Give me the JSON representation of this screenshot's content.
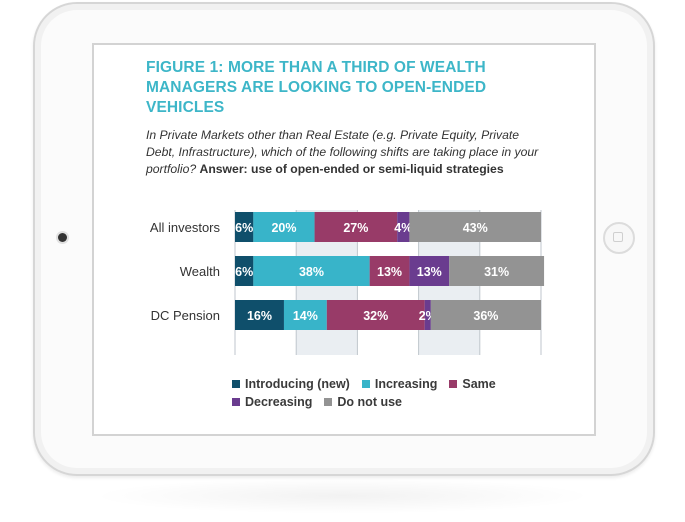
{
  "figure": {
    "title": "FIGURE 1: MORE THAN A THIRD OF WEALTH MANAGERS ARE LOOKING TO OPEN-ENDED VEHICLES",
    "question": "In Private Markets other than Real Estate (e.g. Private Equity, Private Debt, Infrastructure), which of the following shifts are taking place in your portfolio?",
    "answer": "Answer: use of open-ended or semi-liquid strategies"
  },
  "chart_data": {
    "type": "bar",
    "orientation": "horizontal",
    "stacked": true,
    "categories": [
      "All investors",
      "Wealth",
      "DC Pension"
    ],
    "series": [
      {
        "name": "Introducing (new)",
        "color": "#0f4f6b",
        "values": [
          6,
          6,
          16
        ]
      },
      {
        "name": "Increasing",
        "color": "#38b4c9",
        "values": [
          20,
          38,
          14
        ]
      },
      {
        "name": "Same",
        "color": "#983b68",
        "values": [
          27,
          13,
          32
        ]
      },
      {
        "name": "Decreasing",
        "color": "#6a3c8f",
        "values": [
          4,
          13,
          2
        ]
      },
      {
        "name": "Do not use",
        "color": "#939393",
        "values": [
          43,
          31,
          36
        ]
      }
    ],
    "value_suffix": "%",
    "xlim": [
      0,
      100
    ],
    "grid": "vertical bands",
    "legend_position": "bottom"
  }
}
